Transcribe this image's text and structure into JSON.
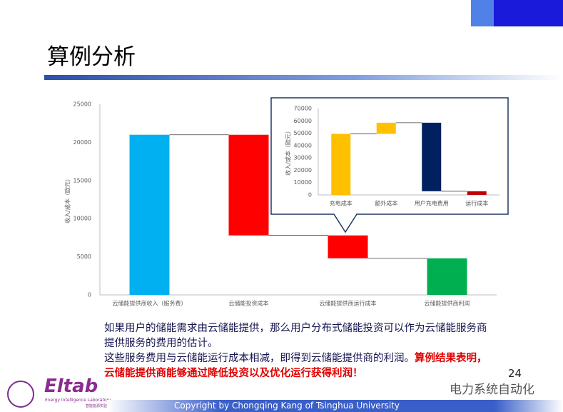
{
  "chart_data": [
    {
      "type": "waterfall",
      "ylabel": "收入/成本（欧元）",
      "categories": [
        "云储能提供商收入（服务费）",
        "云储能投资成本",
        "云储能提供商运行成本",
        "云储能提供商利润"
      ],
      "values": [
        21000,
        -13200,
        -3000,
        4800
      ],
      "measures": [
        "absolute",
        "relative",
        "relative",
        "total"
      ],
      "colors": [
        "#00b0f0",
        "#ff0000",
        "#ff0000",
        "#00b050"
      ],
      "ylim": [
        0,
        25000
      ],
      "yticks": [
        0,
        5000,
        10000,
        15000,
        20000,
        25000
      ],
      "grid": false
    },
    {
      "type": "waterfall",
      "ylabel": "收入/成本（欧元）",
      "categories": [
        "充电成本",
        "额外成本",
        "用户充电费用",
        "运行成本"
      ],
      "values": [
        49500,
        9000,
        -55500,
        -3000
      ],
      "measures": [
        "absolute",
        "relative",
        "relative",
        "relative"
      ],
      "colors": [
        "#ffc000",
        "#ffc000",
        "#002060",
        "#c00000"
      ],
      "ylim": [
        0,
        70000
      ],
      "yticks": [
        0,
        10000,
        20000,
        30000,
        40000,
        50000,
        60000,
        70000
      ],
      "grid": false
    }
  ],
  "slide": {
    "title": "算例分析",
    "paragraph1": "如果用户的储能需求由云储能提供，那么用户分布式储能投资可以作为云储能服务商提供服务的费用的估计。",
    "paragraph2": "这些服务费用与云储能运行成本相减，即得到云储能提供商的利润。",
    "paragraph2_highlight": "算例结果表明，云储能提供商能够通过降低投资以及优化运行获得利润！",
    "page_number": "24",
    "logo": "Eltab",
    "logo_sub": "Energy Intelligence Laboratory",
    "logo_cn": "智能能源实验室",
    "watermark": "电力系统自动化",
    "copyright": "Copyright by Chongqing Kang of Tsinghua University"
  }
}
